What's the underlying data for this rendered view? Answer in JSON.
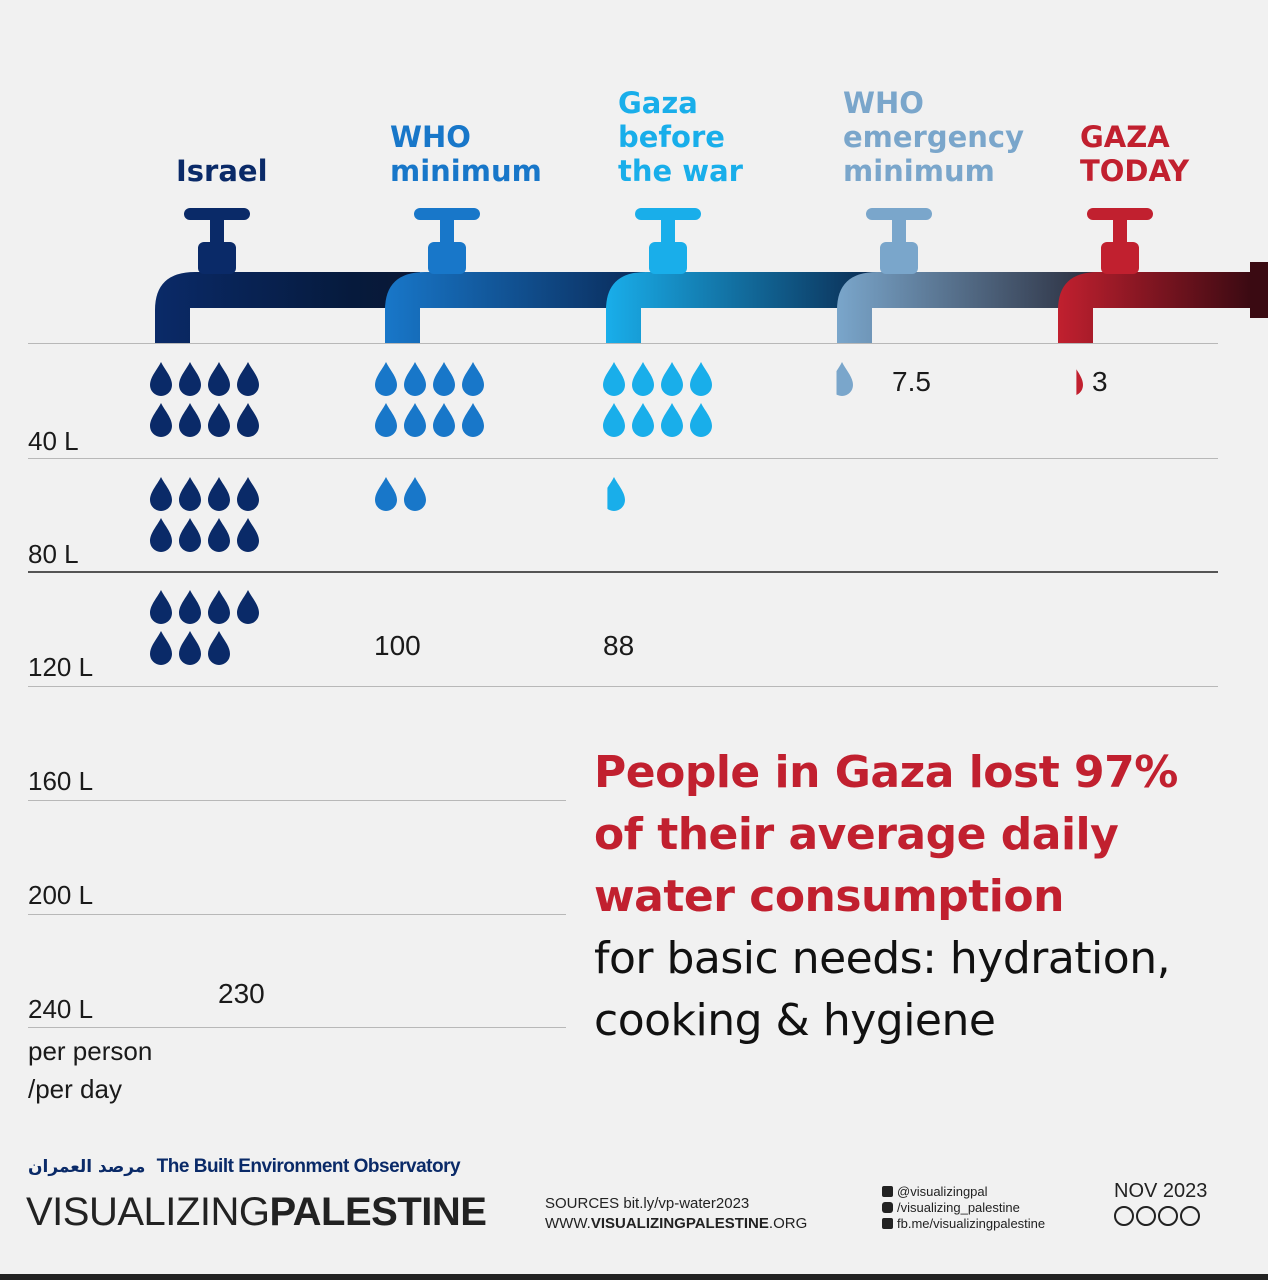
{
  "chart_data": {
    "type": "pictogram",
    "unit_per_drop": 10,
    "categories": [
      {
        "label": "Israel",
        "value": 230,
        "value_label": "230",
        "color": "#0a2a68"
      },
      {
        "label": "WHO\nminimum",
        "value": 100,
        "value_label": "100",
        "color": "#1877c9"
      },
      {
        "label": "Gaza\nbefore\nthe war",
        "value": 88,
        "value_label": "88",
        "color": "#19aeea"
      },
      {
        "label": "WHO\nemergency\nminimum",
        "value": 7.5,
        "value_label": "7.5",
        "color": "#7aa6cb"
      },
      {
        "label": "GAZA\nTODAY",
        "value": 3,
        "value_label": "3",
        "color": "#c1202f"
      }
    ],
    "rows": [
      "40 L",
      "80 L",
      "120 L",
      "160 L",
      "200 L",
      "240 L"
    ],
    "ylabel": "per person\n/per day"
  },
  "headline": {
    "red_1": "People in Gaza lost 97%",
    "red_2": "of their average daily",
    "red_3": "water consumption",
    "black_1": "for basic needs: hydration,",
    "black_2": "cooking & hygiene"
  },
  "footer": {
    "observatory_arabic": "مرصد العمران",
    "observatory": "The Built Environment Observatory",
    "brand_light": "VISUALIZING",
    "brand_bold": "PALESTINE",
    "sources_label": "SOURCES",
    "sources_url": "bit.ly/vp-water2023",
    "site_prefix": "WWW.",
    "site_bold": "VISUALIZINGPALESTINE",
    "site_suffix": ".ORG",
    "twitter": "@visualizingpal",
    "instagram": "/visualizing_palestine",
    "facebook": "fb.me/visualizingpalestine",
    "date": "NOV 2023"
  }
}
